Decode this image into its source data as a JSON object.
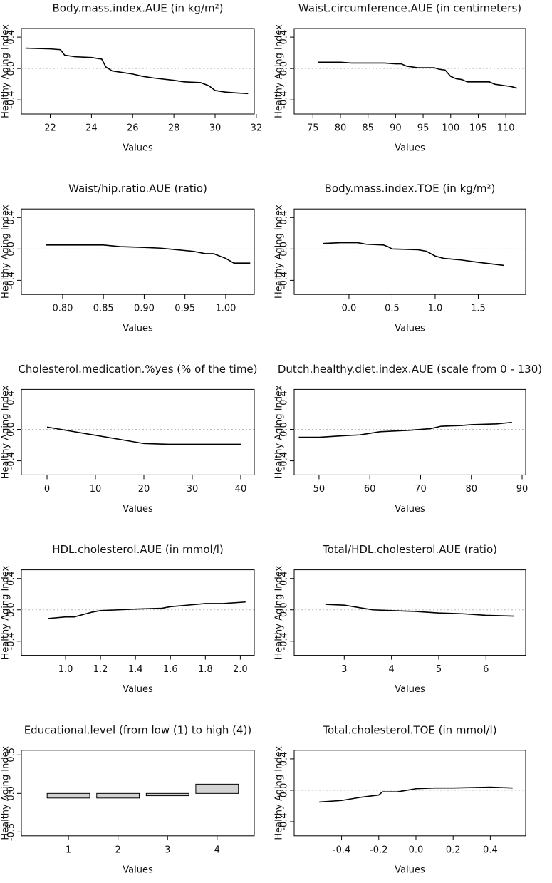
{
  "chart_data": [
    {
      "type": "line",
      "title": "Body.mass.index.AUE (in kg/m²)",
      "xlabel": "Values",
      "ylabel": "Healthy Aging Index",
      "color": "#000000",
      "hline": 0,
      "x": [
        20.8,
        22.0,
        22.5,
        22.7,
        23.2,
        24.0,
        24.5,
        24.7,
        25.0,
        25.5,
        26.0,
        26.5,
        27.0,
        28.0,
        28.5,
        29.3,
        29.7,
        30.0,
        30.5,
        31.0,
        31.6
      ],
      "values": [
        0.26,
        0.25,
        0.24,
        0.17,
        0.15,
        0.14,
        0.12,
        0.02,
        -0.03,
        -0.05,
        -0.07,
        -0.1,
        -0.12,
        -0.15,
        -0.17,
        -0.18,
        -0.22,
        -0.28,
        -0.3,
        -0.31,
        -0.32
      ],
      "xlim": [
        20.6,
        31.9
      ],
      "xticks": [
        22,
        24,
        26,
        28,
        30,
        32
      ],
      "ylim": [
        -0.58,
        0.51
      ],
      "yticks": [
        -0.4,
        {
          "value": 0,
          "label": "0.0"
        },
        0.4
      ]
    },
    {
      "type": "line",
      "title": "Waist.circumference.AUE (in centimeters)",
      "xlabel": "Values",
      "ylabel": "Healthy Aging Index",
      "color": "#000000",
      "hline": 0,
      "x": [
        76,
        80,
        82,
        88,
        90,
        91,
        92,
        94,
        97,
        98,
        99,
        100,
        101,
        102,
        103,
        104,
        107,
        108,
        110,
        111,
        112
      ],
      "values": [
        0.08,
        0.08,
        0.07,
        0.07,
        0.06,
        0.06,
        0.03,
        0.01,
        0.01,
        -0.01,
        -0.02,
        -0.1,
        -0.13,
        -0.14,
        -0.17,
        -0.17,
        -0.17,
        -0.2,
        -0.22,
        -0.23,
        -0.25
      ],
      "xlim": [
        71.6,
        113.6
      ],
      "xticks": [
        75,
        80,
        85,
        90,
        95,
        100,
        105,
        110
      ],
      "ylim": [
        -0.58,
        0.51
      ],
      "yticks": [
        -0.4,
        {
          "value": 0,
          "label": "0.0"
        },
        0.4
      ]
    },
    {
      "type": "line",
      "title": "Waist/hip.ratio.AUE (ratio)",
      "xlabel": "Values",
      "ylabel": "Healthy Aging Index",
      "color": "#000000",
      "hline": 0,
      "x": [
        0.78,
        0.85,
        0.87,
        0.9,
        0.92,
        0.94,
        0.96,
        0.975,
        0.985,
        1.0,
        1.01,
        1.03
      ],
      "values": [
        0.05,
        0.05,
        0.03,
        0.02,
        0.01,
        -0.01,
        -0.03,
        -0.06,
        -0.06,
        -0.12,
        -0.18,
        -0.18
      ],
      "xlim": [
        0.7494,
        1.035
      ],
      "xticks": [
        {
          "value": 0.8,
          "label": "0.80"
        },
        0.85,
        {
          "value": 0.9,
          "label": "0.90"
        },
        0.95,
        {
          "value": 1,
          "label": "1.00"
        }
      ],
      "ylim": [
        -0.58,
        0.51
      ],
      "yticks": [
        -0.4,
        {
          "value": 0,
          "label": "0.0"
        },
        0.4
      ]
    },
    {
      "type": "line",
      "title": "Body.mass.index.TOE (in kg/m²)",
      "xlabel": "Values",
      "ylabel": "Healthy Aging Index",
      "color": "#000000",
      "hline": 0,
      "x": [
        -0.3,
        -0.1,
        0.1,
        0.2,
        0.4,
        0.45,
        0.5,
        0.8,
        0.9,
        1.0,
        1.1,
        1.3,
        1.5,
        1.8
      ],
      "values": [
        0.07,
        0.08,
        0.08,
        0.06,
        0.05,
        0.03,
        0.0,
        -0.01,
        -0.03,
        -0.09,
        -0.12,
        -0.14,
        -0.17,
        -0.21
      ],
      "xlim": [
        -0.636,
        2.05
      ],
      "xticks": [
        {
          "value": 0,
          "label": "0.0"
        },
        0.5,
        {
          "value": 1,
          "label": "1.0"
        },
        1.5
      ],
      "ylim": [
        -0.58,
        0.51
      ],
      "yticks": [
        -0.4,
        {
          "value": 0,
          "label": "0.0"
        },
        0.4
      ]
    },
    {
      "type": "line",
      "title": "Cholesterol.medication.%yes (% of the time)",
      "xlabel": "Values",
      "ylabel": "Healthy Aging Index",
      "color": "#000000",
      "hline": 0,
      "x": [
        0,
        20,
        25,
        40
      ],
      "values": [
        0.03,
        -0.18,
        -0.19,
        -0.19
      ],
      "xlim": [
        -5.3,
        42.8
      ],
      "xticks": [
        0,
        10,
        20,
        30,
        40
      ],
      "ylim": [
        -0.58,
        0.51
      ],
      "yticks": [
        -0.4,
        {
          "value": 0,
          "label": "0.0"
        },
        0.4
      ]
    },
    {
      "type": "line",
      "title": "Dutch.healthy.diet.index.AUE (scale from 0 - 130)",
      "xlabel": "Values",
      "ylabel": "Healthy Aging Index",
      "color": "#000000",
      "hline": 0,
      "x": [
        46,
        50,
        55,
        58,
        60,
        62,
        68,
        72,
        74,
        78,
        80,
        85,
        88
      ],
      "values": [
        -0.1,
        -0.1,
        -0.08,
        -0.07,
        -0.05,
        -0.03,
        -0.01,
        0.01,
        0.04,
        0.05,
        0.06,
        0.07,
        0.09
      ],
      "xlim": [
        45.1,
        90.7
      ],
      "xticks": [
        50,
        60,
        70,
        80,
        90
      ],
      "ylim": [
        -0.58,
        0.51
      ],
      "yticks": [
        -0.4,
        {
          "value": 0,
          "label": "0.0"
        },
        0.4
      ]
    },
    {
      "type": "line",
      "title": "HDL.cholesterol.AUE (in mmol/l)",
      "xlabel": "Values",
      "ylabel": "Healthy Aging Index",
      "color": "#000000",
      "hline": 0,
      "x": [
        0.9,
        1.0,
        1.05,
        1.1,
        1.15,
        1.2,
        1.3,
        1.4,
        1.55,
        1.6,
        1.7,
        1.8,
        1.9,
        2.03
      ],
      "values": [
        -0.11,
        -0.09,
        -0.09,
        -0.06,
        -0.03,
        -0.01,
        0.0,
        0.01,
        0.02,
        0.04,
        0.06,
        0.08,
        0.08,
        0.1
      ],
      "xlim": [
        0.747,
        2.08
      ],
      "xticks": [
        {
          "value": 1,
          "label": "1.0"
        },
        1.2,
        1.4,
        1.6,
        1.8,
        {
          "value": 2,
          "label": "2.0"
        }
      ],
      "ylim": [
        -0.58,
        0.51
      ],
      "yticks": [
        -0.4,
        {
          "value": 0,
          "label": "0.0"
        },
        0.4
      ]
    },
    {
      "type": "line",
      "title": "Total/HDL.cholesterol.AUE (ratio)",
      "xlabel": "Values",
      "ylabel": "Healthy Aging Index",
      "color": "#000000",
      "hline": 0,
      "x": [
        2.6,
        3.0,
        3.3,
        3.6,
        4.0,
        4.5,
        5.0,
        5.5,
        6.0,
        6.6
      ],
      "values": [
        0.07,
        0.06,
        0.03,
        0.0,
        -0.01,
        -0.02,
        -0.04,
        -0.05,
        -0.07,
        -0.08
      ],
      "xlim": [
        1.94,
        6.84
      ],
      "xticks": [
        3,
        4,
        5,
        6
      ],
      "ylim": [
        -0.58,
        0.51
      ],
      "yticks": [
        -0.4,
        {
          "value": 0,
          "label": "0.0"
        },
        0.4
      ]
    },
    {
      "type": "bar",
      "title": "Educational.level (from low (1) to high (4))",
      "xlabel": "Values",
      "ylabel": "Healthy Aging Index",
      "color": "#d3d3d3",
      "categories": [
        "1",
        "2",
        "3",
        "4"
      ],
      "values": [
        -0.06,
        -0.06,
        -0.03,
        0.12
      ],
      "ylim": [
        -0.55,
        0.56
      ],
      "yticks": [
        -0.5,
        {
          "value": 0,
          "label": "0.0"
        },
        0.5
      ]
    },
    {
      "type": "line",
      "title": "Total.cholesterol.TOE (in mmol/l)",
      "xlabel": "Values",
      "ylabel": "Healthy Aging Index",
      "color": "#000000",
      "hline": 0,
      "x": [
        -0.52,
        -0.4,
        -0.3,
        -0.2,
        -0.18,
        -0.1,
        0.0,
        0.1,
        0.2,
        0.4,
        0.52
      ],
      "values": [
        -0.15,
        -0.13,
        -0.09,
        -0.06,
        -0.02,
        -0.02,
        0.02,
        0.03,
        0.03,
        0.04,
        0.03
      ],
      "xlim": [
        -0.655,
        0.59
      ],
      "xticks": [
        -0.4,
        -0.2,
        {
          "value": 0,
          "label": "0.0"
        },
        0.2,
        0.4
      ],
      "ylim": [
        -0.58,
        0.51
      ],
      "yticks": [
        -0.4,
        {
          "value": 0,
          "label": "0.0"
        },
        0.4
      ]
    }
  ]
}
